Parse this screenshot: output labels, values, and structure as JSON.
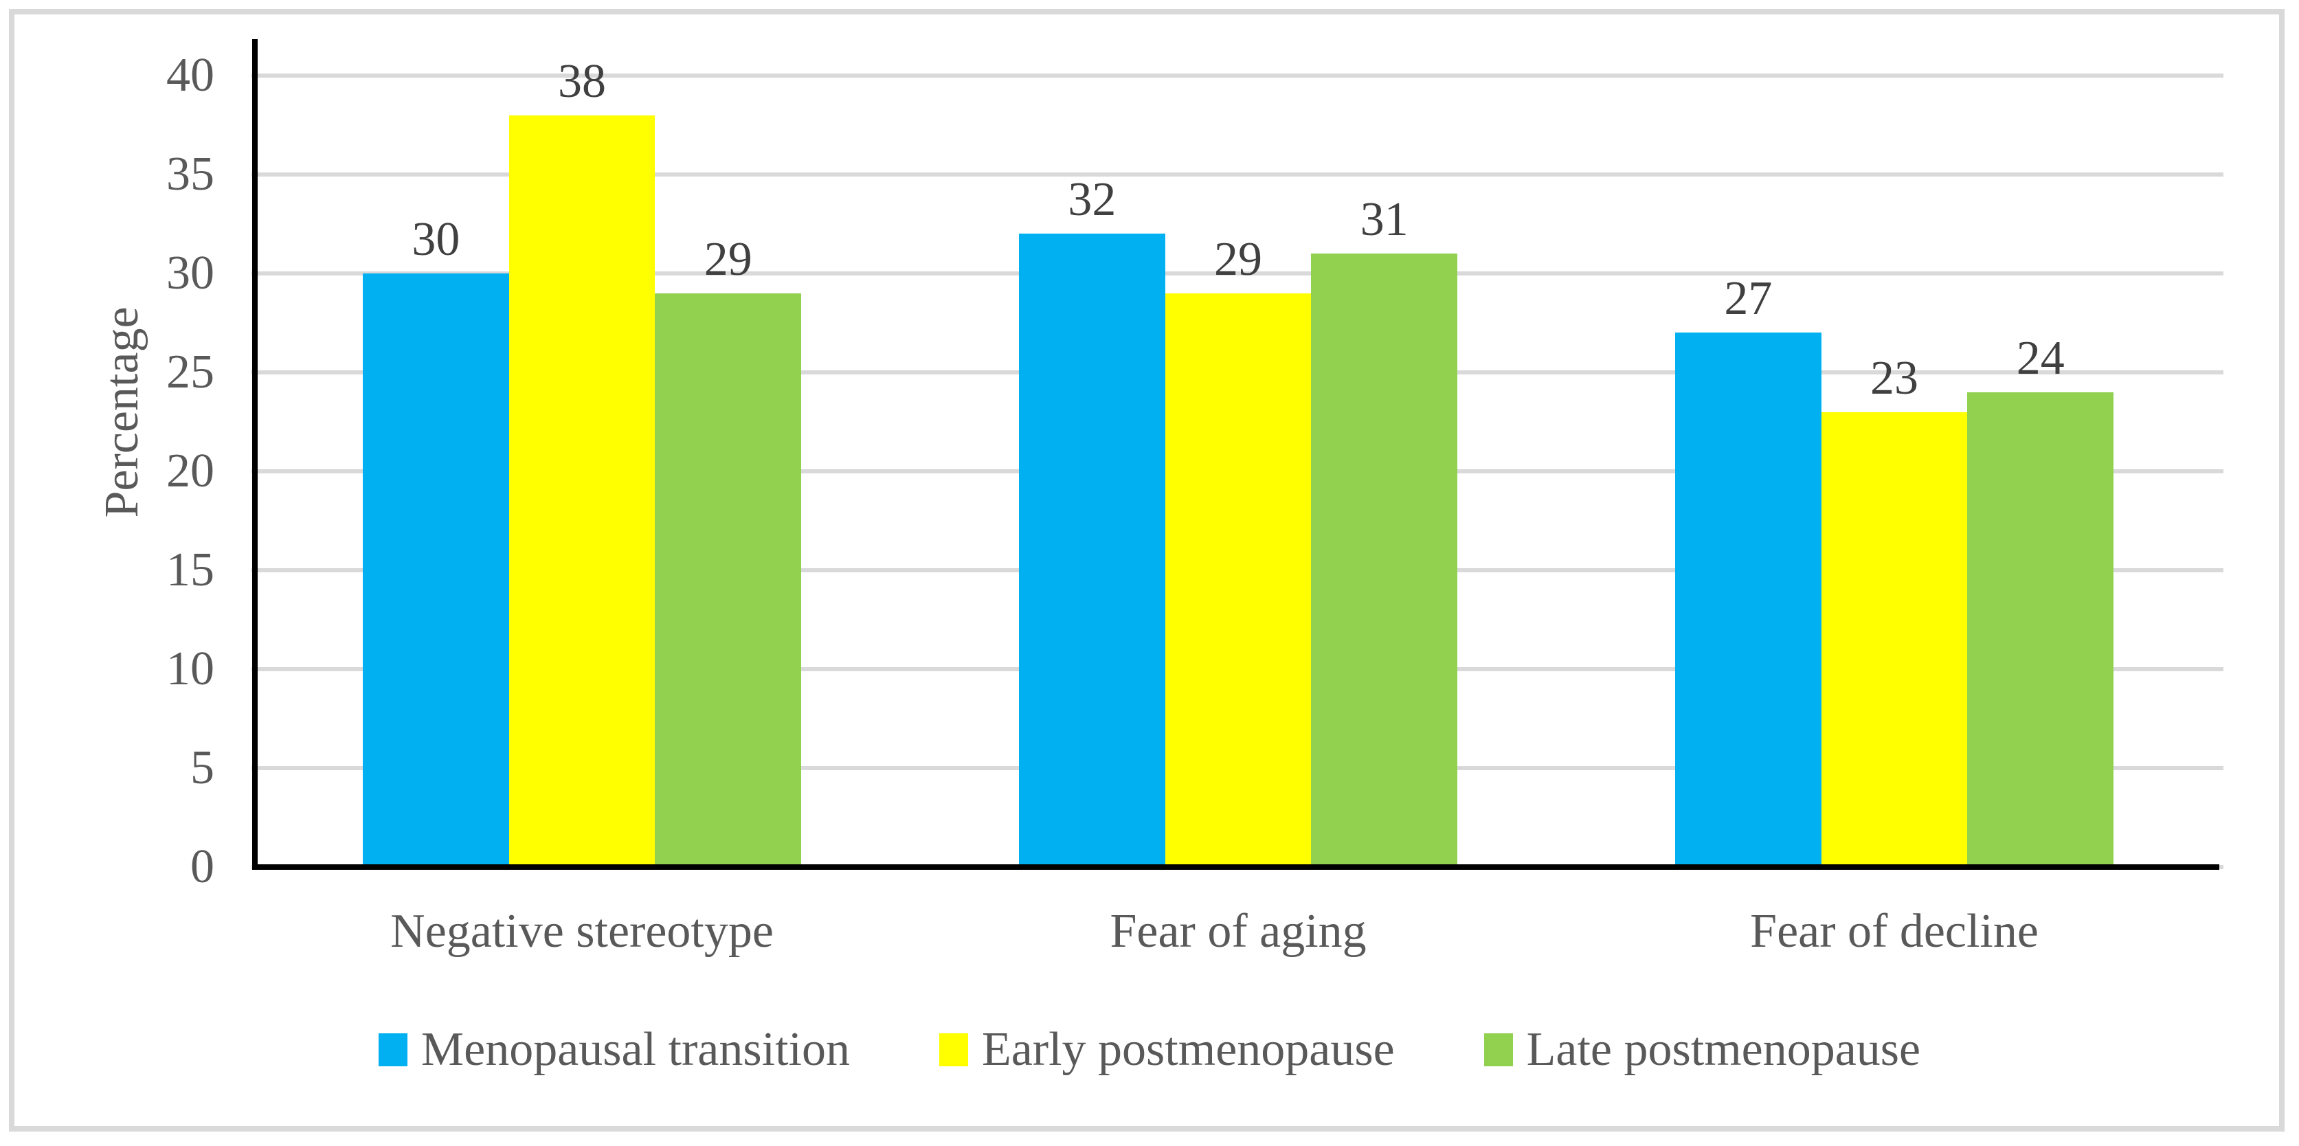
{
  "figure": {
    "background_color": "#FFFFFF",
    "border_color": "#D9D9D9",
    "gridline_color": "#D9D9D9",
    "axis_color": "#000000",
    "text_color": "#595959",
    "data_label_color": "#404040"
  },
  "chart_data": {
    "type": "bar",
    "title": "",
    "categories": [
      "Negative stereotype",
      "Fear of aging",
      "Fear of decline"
    ],
    "series": [
      {
        "name": "Menopausal transition",
        "color": "#00B0F0",
        "values": [
          30,
          32,
          27
        ]
      },
      {
        "name": "Early postmenopause",
        "color": "#FFFF00",
        "values": [
          38,
          29,
          23
        ]
      },
      {
        "name": "Late postmenopause",
        "color": "#92D050",
        "values": [
          29,
          31,
          24
        ]
      }
    ],
    "data_labels": {
      "Negative stereotype": [
        30,
        38,
        29
      ],
      "Fear of aging": [
        32,
        29,
        31
      ],
      "Fear of decline": [
        27,
        23,
        24
      ]
    },
    "xlabel": "",
    "ylabel": "Percentage",
    "ylim": [
      0,
      40
    ],
    "ytick_interval": 5,
    "yticks": [
      0,
      5,
      10,
      15,
      20,
      25,
      30,
      35,
      40
    ],
    "grid": "horizontal",
    "legend_position": "bottom",
    "legend_entries": [
      "Menopausal transition",
      "Early postmenopause",
      "Late postmenopause"
    ]
  }
}
